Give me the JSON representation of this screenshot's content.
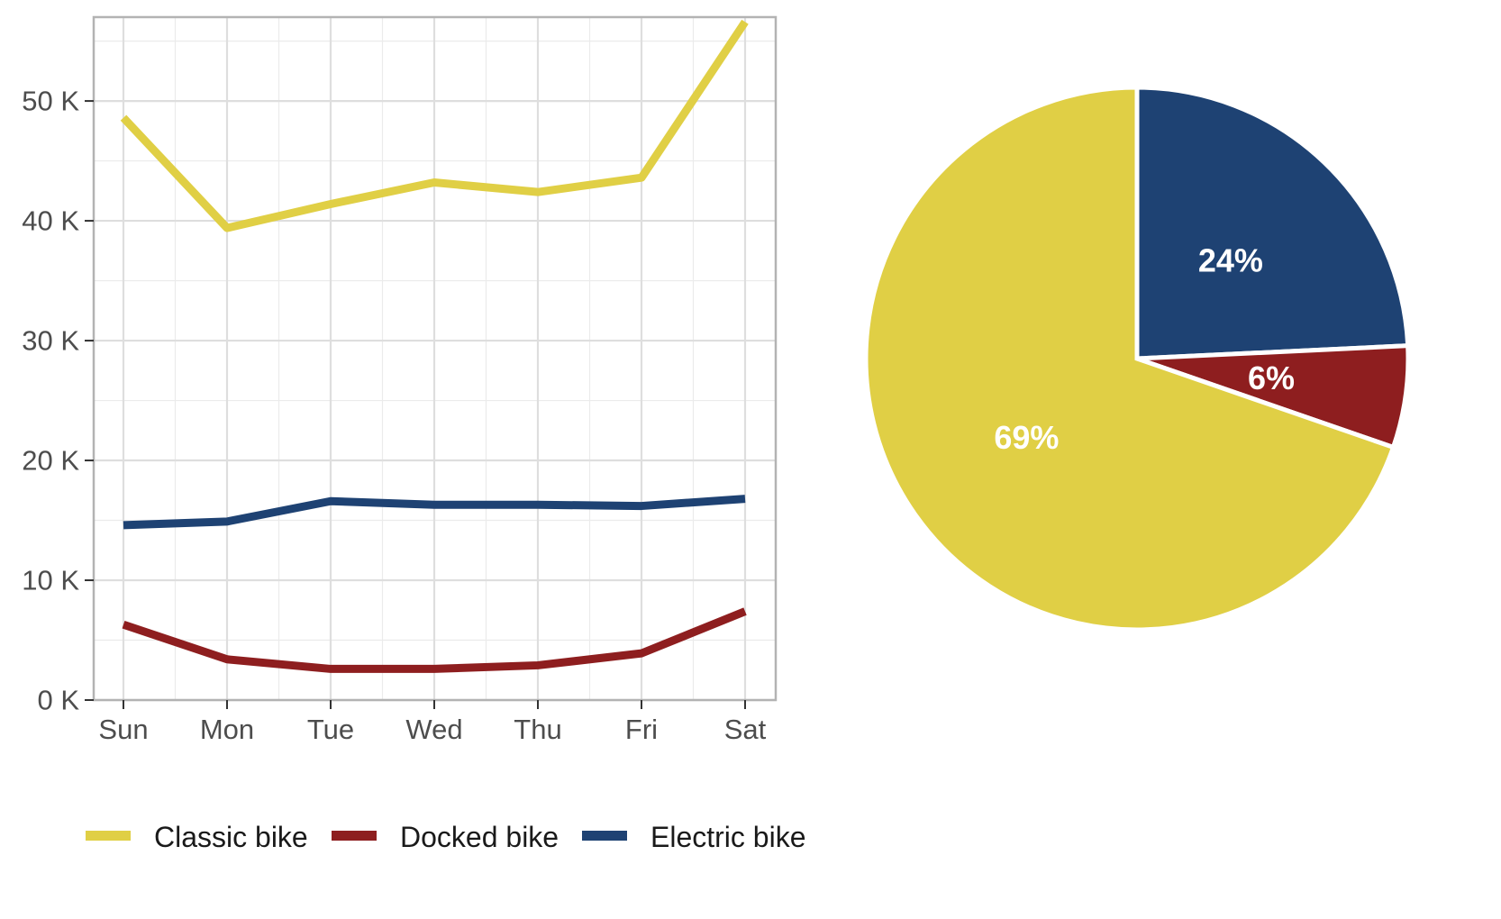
{
  "chart_data": [
    {
      "type": "line",
      "categories": [
        "Sun",
        "Mon",
        "Tue",
        "Wed",
        "Thu",
        "Fri",
        "Sat"
      ],
      "ylim": [
        0,
        57000
      ],
      "yticks": [
        0,
        10000,
        20000,
        30000,
        40000,
        50000
      ],
      "ytick_labels": [
        "0 K",
        "10 K",
        "20 K",
        "30 K",
        "40 K",
        "50 K"
      ],
      "grid": true,
      "legend_position": "bottom",
      "series": [
        {
          "name": "Classic bike",
          "color": "#e0cf45",
          "values": [
            48600,
            39400,
            41400,
            43200,
            42400,
            43600,
            56600
          ]
        },
        {
          "name": "Docked bike",
          "color": "#8e1e1f",
          "values": [
            6300,
            3400,
            2600,
            2600,
            2900,
            3900,
            7400
          ]
        },
        {
          "name": "Electric bike",
          "color": "#1e4273",
          "values": [
            14600,
            14900,
            16600,
            16300,
            16300,
            16200,
            16800
          ]
        }
      ]
    },
    {
      "type": "pie",
      "slices": [
        {
          "name": "Electric bike",
          "value": 24,
          "label": "24%",
          "color": "#1e4273"
        },
        {
          "name": "Docked bike",
          "value": 6,
          "label": "6%",
          "color": "#8e1e1f"
        },
        {
          "name": "Classic bike",
          "value": 69,
          "label": "69%",
          "color": "#e0cf45"
        }
      ]
    }
  ]
}
